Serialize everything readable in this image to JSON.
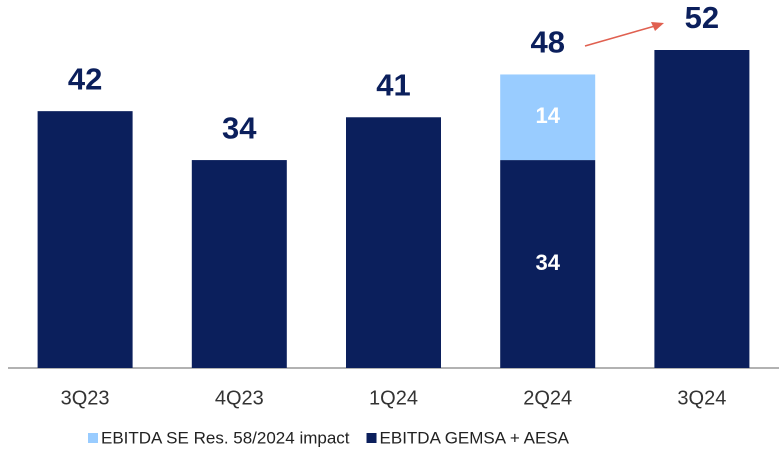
{
  "chart_data": {
    "type": "stacked_bar",
    "categories": [
      "3Q23",
      "4Q23",
      "1Q24",
      "2Q24",
      "3Q24"
    ],
    "series": [
      {
        "name": "EBITDA GEMSA + AESA",
        "color": "#0b1f5c",
        "values": [
          42,
          34,
          41,
          34,
          52
        ]
      },
      {
        "name": "EBITDA SE Res. 58/2024 impact",
        "color": "#99ccff",
        "values": [
          null,
          null,
          null,
          14,
          null
        ]
      }
    ],
    "totals": [
      42,
      34,
      41,
      48,
      52
    ],
    "legend": "bottom"
  }
}
